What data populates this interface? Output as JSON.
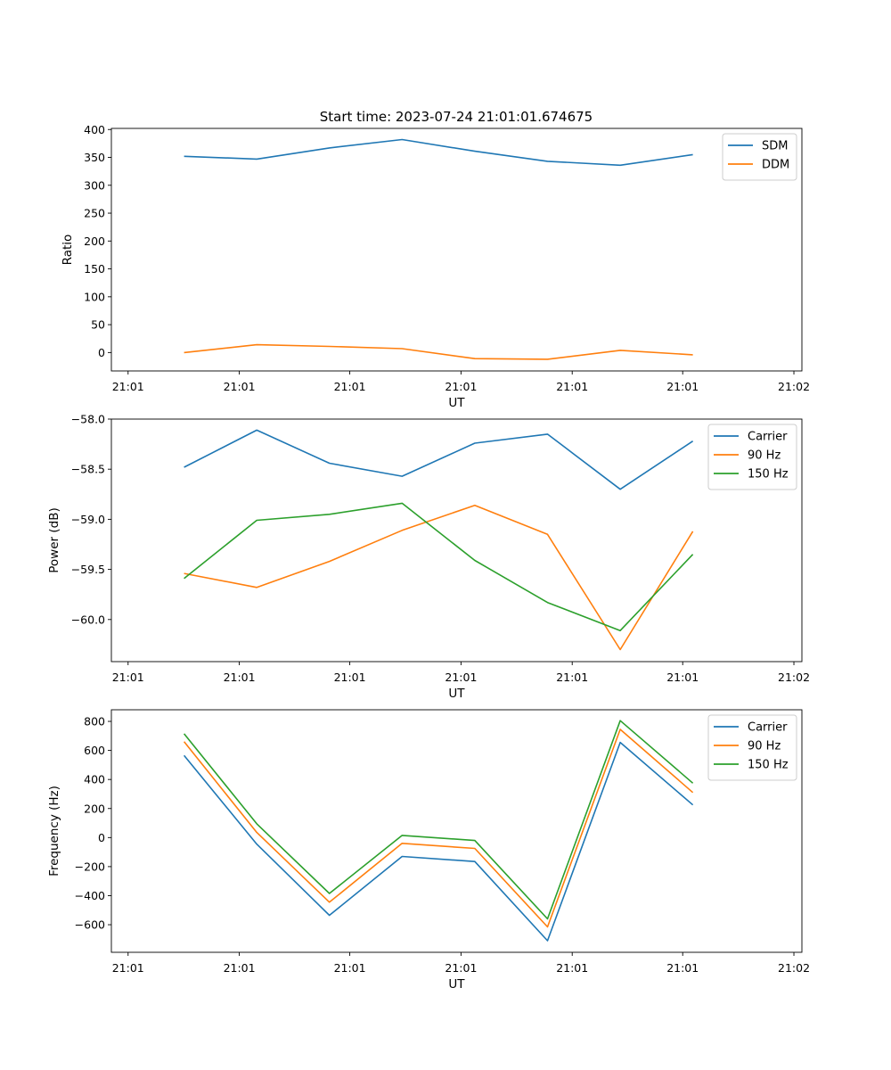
{
  "figure": {
    "title": "Start time: 2023-07-24 21:01:01.674675"
  },
  "chart_data": [
    {
      "type": "line",
      "title": "Start time: 2023-07-24 21:01:01.674675",
      "xlabel": "UT",
      "ylabel": "Ratio",
      "x": [
        1,
        2,
        3,
        4,
        5,
        6,
        7,
        8
      ],
      "x_tick_values": [
        0.23,
        1.76,
        3.28,
        4.81,
        6.34,
        7.86,
        9.39
      ],
      "x_tick_labels": [
        "21:01",
        "21:01",
        "21:01",
        "21:01",
        "21:01",
        "21:01",
        "21:02"
      ],
      "xlim": [
        0,
        9.5
      ],
      "ylim": [
        -33,
        402
      ],
      "y_ticks": [
        0,
        50,
        100,
        150,
        200,
        250,
        300,
        350,
        400
      ],
      "y_tick_labels": [
        "0",
        "50",
        "100",
        "150",
        "200",
        "250",
        "300",
        "350",
        "400"
      ],
      "legend_position": "top-right",
      "series": [
        {
          "name": "SDM",
          "color": "#1f77b4",
          "values": [
            352,
            347,
            367,
            382,
            361,
            343,
            336,
            355
          ]
        },
        {
          "name": "DDM",
          "color": "#ff7f0e",
          "values": [
            0,
            14,
            11,
            7,
            -11,
            -12,
            4,
            -4
          ]
        }
      ]
    },
    {
      "type": "line",
      "xlabel": "UT",
      "ylabel": "Power (dB)",
      "x": [
        1,
        2,
        3,
        4,
        5,
        6,
        7,
        8
      ],
      "x_tick_values": [
        0.23,
        1.76,
        3.28,
        4.81,
        6.34,
        7.86,
        9.39
      ],
      "x_tick_labels": [
        "21:01",
        "21:01",
        "21:01",
        "21:01",
        "21:01",
        "21:01",
        "21:02"
      ],
      "xlim": [
        0,
        9.5
      ],
      "ylim": [
        -60.42,
        -58.0
      ],
      "y_ticks": [
        -60.0,
        -59.5,
        -59.0,
        -58.5,
        -58.0
      ],
      "y_tick_labels": [
        "−60.0",
        "−59.5",
        "−59.0",
        "−58.5",
        "−58.0"
      ],
      "legend_position": "top-right",
      "series": [
        {
          "name": "Carrier",
          "color": "#1f77b4",
          "values": [
            -58.48,
            -58.11,
            -58.44,
            -58.57,
            -58.24,
            -58.15,
            -58.7,
            -58.22
          ]
        },
        {
          "name": "90 Hz",
          "color": "#ff7f0e",
          "values": [
            -59.54,
            -59.68,
            -59.42,
            -59.11,
            -58.86,
            -59.15,
            -60.3,
            -59.12
          ]
        },
        {
          "name": "150 Hz",
          "color": "#2ca02c",
          "values": [
            -59.59,
            -59.01,
            -58.95,
            -58.84,
            -59.41,
            -59.83,
            -60.11,
            -59.35
          ]
        }
      ]
    },
    {
      "type": "line",
      "xlabel": "UT",
      "ylabel": "Frequency (Hz)",
      "x": [
        1,
        2,
        3,
        4,
        5,
        6,
        7,
        8
      ],
      "x_tick_values": [
        0.23,
        1.76,
        3.28,
        4.81,
        6.34,
        7.86,
        9.39
      ],
      "x_tick_labels": [
        "21:01",
        "21:01",
        "21:01",
        "21:01",
        "21:01",
        "21:01",
        "21:02"
      ],
      "xlim": [
        0,
        9.5
      ],
      "ylim": [
        -790,
        880
      ],
      "y_ticks": [
        -600,
        -400,
        -200,
        0,
        200,
        400,
        600,
        800
      ],
      "y_tick_labels": [
        "−600",
        "−400",
        "−200",
        "0",
        "200",
        "400",
        "600",
        "800"
      ],
      "legend_position": "top-right",
      "series": [
        {
          "name": "Carrier",
          "color": "#1f77b4",
          "values": [
            565,
            -45,
            -535,
            -130,
            -165,
            -710,
            655,
            225
          ]
        },
        {
          "name": "90 Hz",
          "color": "#ff7f0e",
          "values": [
            660,
            35,
            -445,
            -40,
            -75,
            -615,
            745,
            310
          ]
        },
        {
          "name": "150 Hz",
          "color": "#2ca02c",
          "values": [
            715,
            95,
            -385,
            15,
            -20,
            -560,
            805,
            375
          ]
        }
      ]
    }
  ]
}
